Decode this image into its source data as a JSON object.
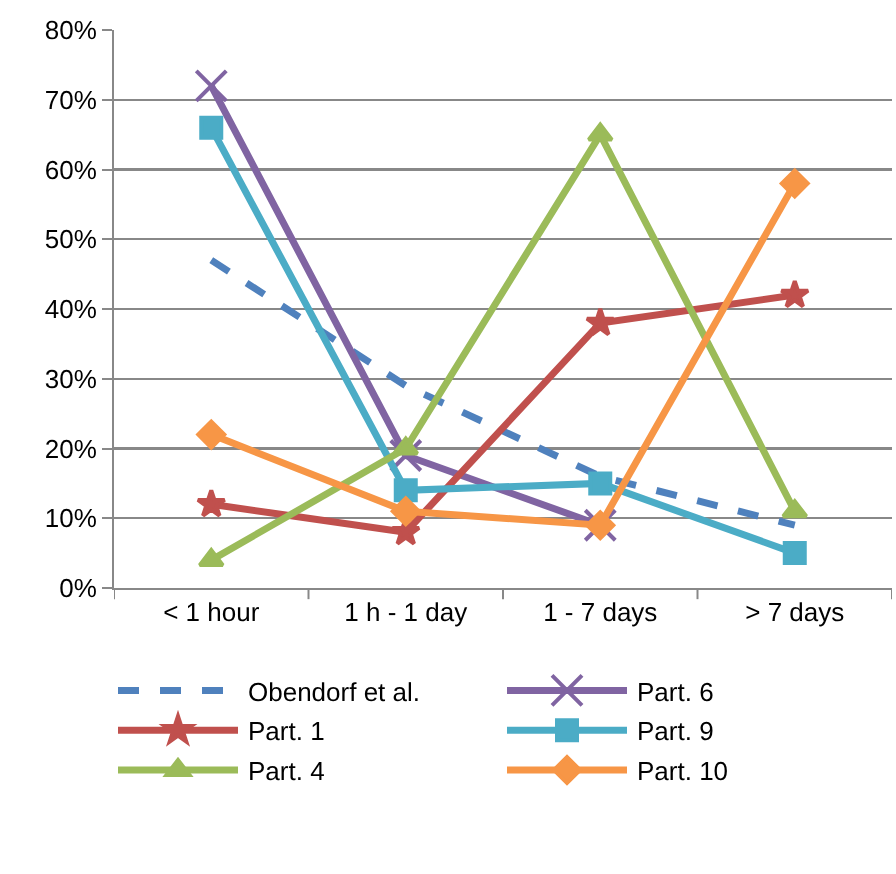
{
  "chart_data": {
    "type": "line",
    "categories": [
      "< 1 hour",
      "1 h - 1 day",
      "1 - 7 days",
      "> 7 days"
    ],
    "series": [
      {
        "name": "Obendorf et al.",
        "color": "#4f81bd",
        "values": [
          47,
          29,
          16,
          9
        ],
        "marker": "none",
        "line_style": "dashed"
      },
      {
        "name": "Part. 6",
        "color": "#8064a2",
        "values": [
          72,
          19,
          9,
          null
        ],
        "marker": "cross"
      },
      {
        "name": "Part. 1",
        "color": "#c0504d",
        "values": [
          12,
          8,
          38,
          42
        ],
        "marker": "star"
      },
      {
        "name": "Part. 9",
        "color": "#4bacc6",
        "values": [
          66,
          14,
          15,
          5
        ],
        "marker": "square"
      },
      {
        "name": "Part. 4",
        "color": "#9bbb59",
        "values": [
          4,
          20,
          65,
          11
        ],
        "marker": "triangle"
      },
      {
        "name": "Part. 10",
        "color": "#f79646",
        "values": [
          22,
          11,
          9,
          58
        ],
        "marker": "diamond"
      }
    ],
    "ylim": [
      0,
      80
    ],
    "yticks": [
      {
        "value": 0,
        "label": "0%"
      },
      {
        "value": 10,
        "label": "10%"
      },
      {
        "value": 20,
        "label": "20%"
      },
      {
        "value": 30,
        "label": "30%"
      },
      {
        "value": 40,
        "label": "40%"
      },
      {
        "value": 50,
        "label": "50%"
      },
      {
        "value": 60,
        "label": "60%"
      },
      {
        "value": 70,
        "label": "70%"
      },
      {
        "value": 80,
        "label": "80%"
      }
    ],
    "grid": "y",
    "legend": "bottom",
    "line_style": "solid"
  }
}
